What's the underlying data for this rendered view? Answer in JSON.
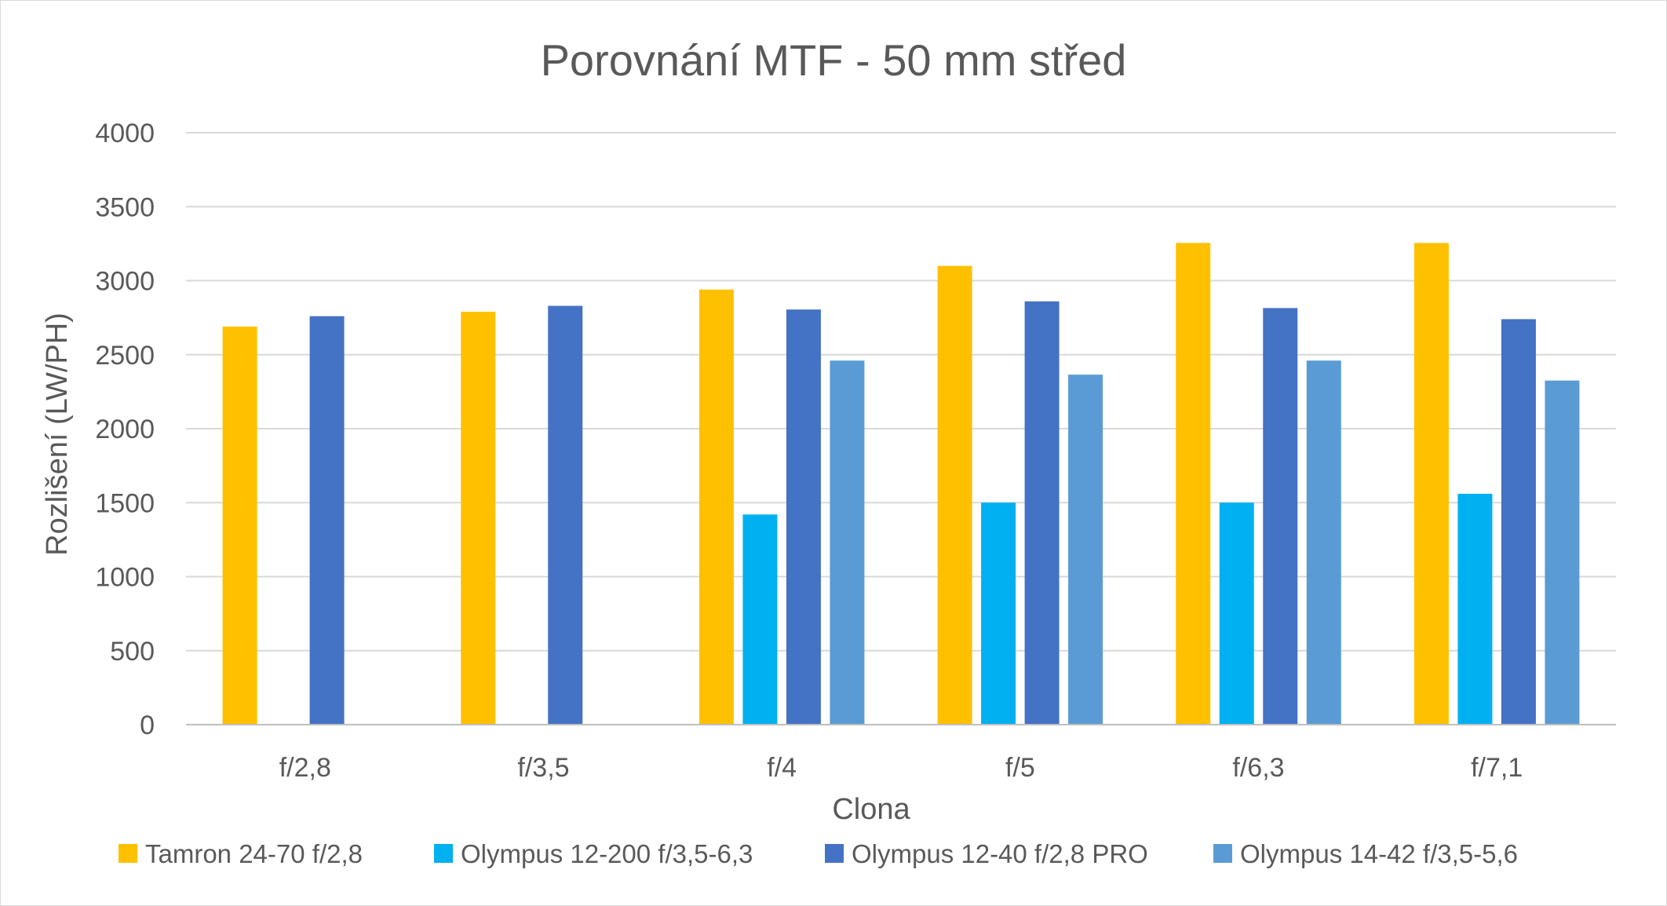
{
  "chart_data": {
    "type": "bar",
    "title": "Porovnání MTF - 50 mm střed",
    "xlabel": "Clona",
    "ylabel": "Rozlišení (LW/PH)",
    "ylim": [
      0,
      4000
    ],
    "yticks": [
      0,
      500,
      1000,
      1500,
      2000,
      2500,
      3000,
      3500,
      4000
    ],
    "grid": true,
    "legend_position": "bottom",
    "categories": [
      "f/2,8",
      "f/3,5",
      "f/4",
      "f/5",
      "f/6,3",
      "f/7,1"
    ],
    "series": [
      {
        "name": "Tamron 24-70 f/2,8",
        "color": "#FFC000",
        "values": [
          2690,
          2790,
          2940,
          3100,
          3255,
          3255
        ]
      },
      {
        "name": "Olympus 12-200 f/3,5-6,3",
        "color": "#00B0F0",
        "values": [
          null,
          null,
          1420,
          1500,
          1500,
          1560
        ]
      },
      {
        "name": "Olympus 12-40 f/2,8 PRO",
        "color": "#4472C4",
        "values": [
          2760,
          2830,
          2805,
          2860,
          2815,
          2740
        ]
      },
      {
        "name": "Olympus 14-42 f/3,5-5,6",
        "color": "#5B9BD5",
        "values": [
          null,
          null,
          2460,
          2365,
          2460,
          2325
        ]
      }
    ]
  }
}
